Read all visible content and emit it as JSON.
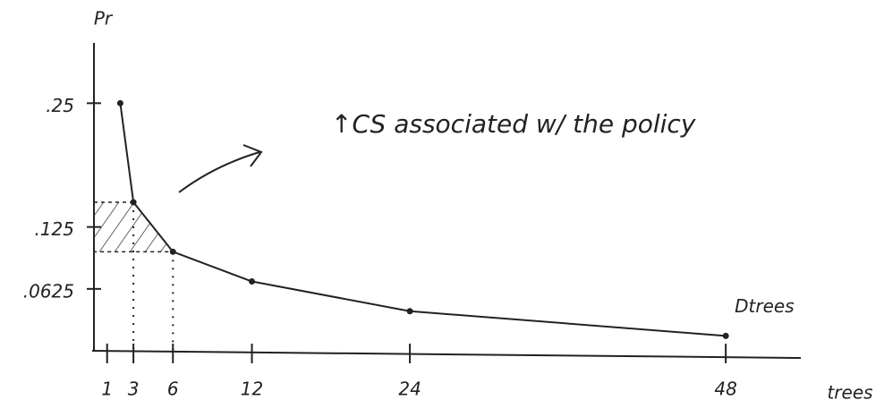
{
  "chart_data": {
    "type": "line",
    "y_label": "Pr",
    "x_label": "trees",
    "annotation": "↑CS associated w/ the policy",
    "x": [
      2,
      3,
      6,
      12,
      24,
      48
    ],
    "series": [
      {
        "name": "Dtrees",
        "color": "#222222",
        "values": [
          0.25,
          0.15,
          0.1,
          0.07,
          0.04,
          0.015
        ]
      }
    ],
    "xlim": [
      0,
      52
    ],
    "xticks": [
      1,
      3,
      6,
      12,
      24,
      48
    ],
    "ylim": [
      0,
      0.3
    ],
    "yticks": [
      {
        "value": 0.25,
        "label": ".25"
      },
      {
        "value": 0.125,
        "label": ".125"
      },
      {
        "value": 0.0625,
        "label": ".0625"
      }
    ],
    "grid": false
  }
}
